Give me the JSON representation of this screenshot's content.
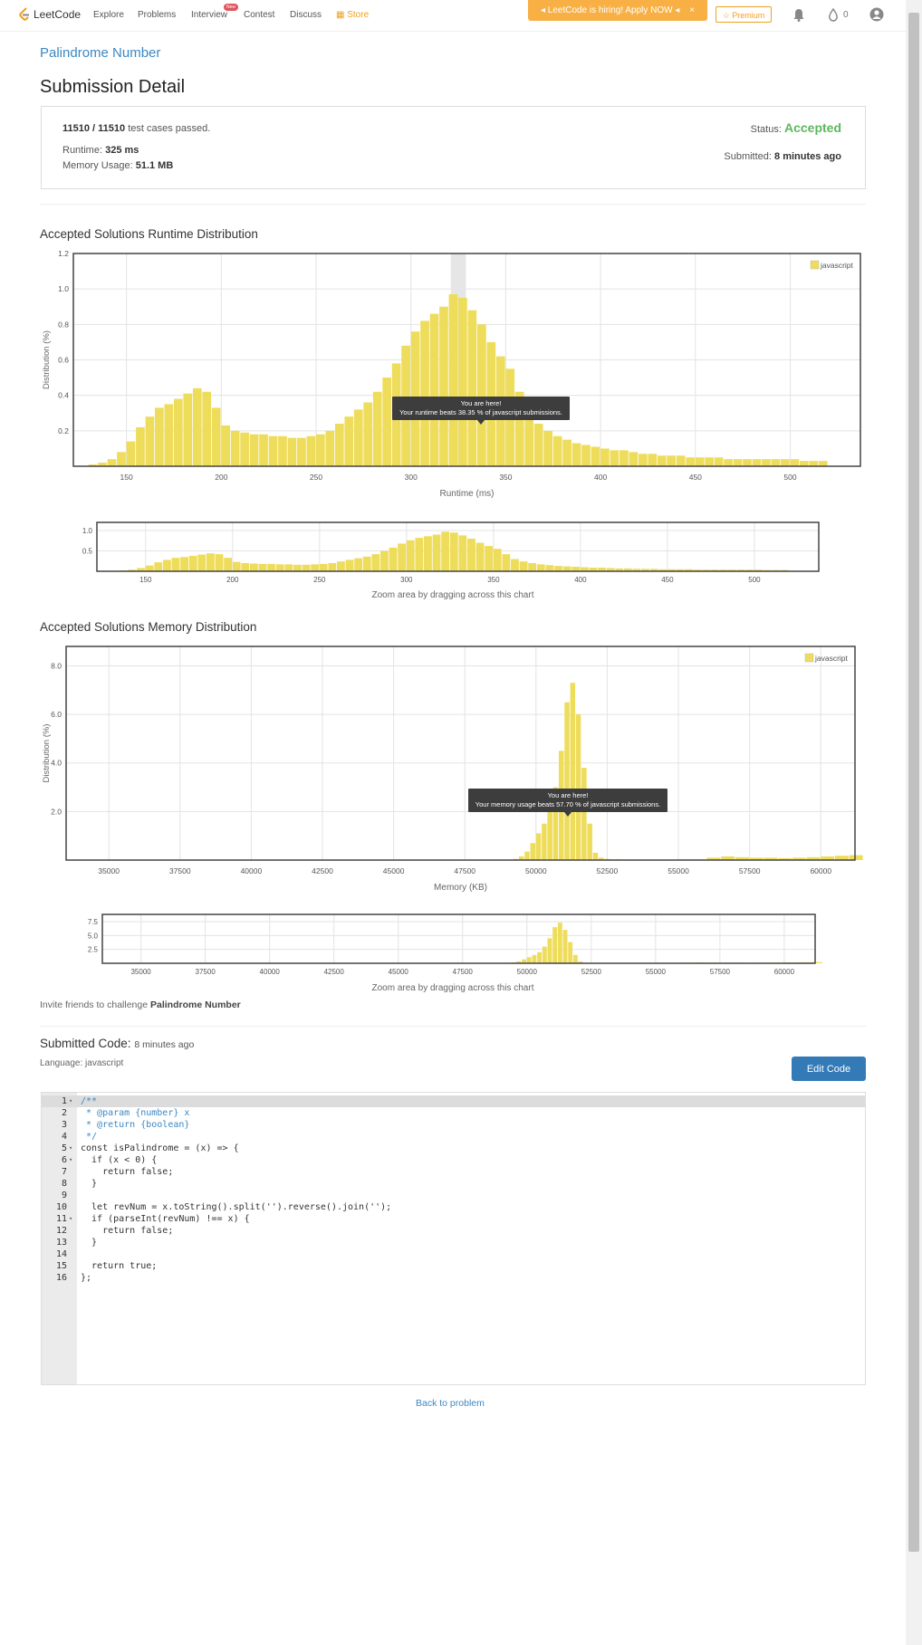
{
  "nav": {
    "brand": "LeetCode",
    "links": [
      "Explore",
      "Problems",
      "Interview",
      "Contest",
      "Discuss",
      "Store"
    ],
    "new_badge": "New",
    "hiring": "LeetCode is hiring! Apply NOW",
    "premium": "Premium",
    "points": "0"
  },
  "problem_title": "Palindrome Number",
  "page_title": "Submission Detail",
  "details": {
    "passed": "11510 / 11510",
    "passed_suffix": "test cases passed.",
    "runtime_label": "Runtime:",
    "runtime": "325 ms",
    "memory_label": "Memory Usage:",
    "memory": "51.1 MB",
    "status_label": "Status:",
    "status": "Accepted",
    "submitted_label": "Submitted:",
    "submitted": "8 minutes ago"
  },
  "runtime_section_title": "Accepted Solutions Runtime Distribution",
  "memory_section_title": "Accepted Solutions Memory Distribution",
  "zoom_note": "Zoom area by dragging across this chart",
  "invite_prefix": "Invite friends to challenge",
  "invite_problem": "Palindrome Number",
  "code_section": {
    "title": "Submitted Code:",
    "time": "8 minutes ago",
    "language": "Language: javascript",
    "edit_button": "Edit Code",
    "lines": [
      "/**",
      " * @param {number} x",
      " * @return {boolean}",
      " */",
      "const isPalindrome = (x) => {",
      "  if (x < 0) {",
      "    return false;",
      "  }",
      "",
      "  let revNum = x.toString().split('').reverse().join('');",
      "  if (parseInt(revNum) !== x) {",
      "    return false;",
      "  }",
      "",
      "  return true;",
      "};"
    ],
    "fold_lines": [
      1,
      5,
      6,
      11
    ]
  },
  "back_link": "Back to problem",
  "colors": {
    "bar": "#eedc5b",
    "accepted": "#5cb85c",
    "link": "#3b88c3"
  },
  "chart_data": [
    {
      "type": "bar",
      "title": "Accepted Solutions Runtime Distribution",
      "xlabel": "Runtime (ms)",
      "ylabel": "Distribution (%)",
      "legend": "javascript",
      "legend_position": "top-right",
      "xlim": [
        122,
        537
      ],
      "ylim": [
        0,
        1.2
      ],
      "xticks": [
        150,
        200,
        250,
        300,
        350,
        400,
        450,
        500
      ],
      "yticks": [
        0.2,
        0.4,
        0.6,
        0.8,
        1.0,
        1.2
      ],
      "grid": true,
      "highlight_x": 325,
      "tooltip": [
        "You are here!",
        "Your runtime beats 38.35 % of javascript submissions."
      ],
      "series": [
        {
          "name": "javascript",
          "x": [
            125,
            130,
            135,
            140,
            145,
            150,
            155,
            160,
            165,
            170,
            175,
            180,
            185,
            190,
            195,
            200,
            205,
            210,
            215,
            220,
            225,
            230,
            235,
            240,
            245,
            250,
            255,
            260,
            265,
            270,
            275,
            280,
            285,
            290,
            295,
            300,
            305,
            310,
            315,
            320,
            325,
            330,
            335,
            340,
            345,
            350,
            355,
            360,
            365,
            370,
            375,
            380,
            385,
            390,
            395,
            400,
            405,
            410,
            415,
            420,
            425,
            430,
            435,
            440,
            445,
            450,
            455,
            460,
            465,
            470,
            475,
            480,
            485,
            490,
            495,
            500,
            505,
            510,
            515
          ],
          "values": [
            0.0,
            0.01,
            0.02,
            0.04,
            0.08,
            0.14,
            0.22,
            0.28,
            0.33,
            0.35,
            0.38,
            0.41,
            0.44,
            0.42,
            0.33,
            0.23,
            0.2,
            0.19,
            0.18,
            0.18,
            0.17,
            0.17,
            0.16,
            0.16,
            0.17,
            0.18,
            0.2,
            0.24,
            0.28,
            0.32,
            0.36,
            0.42,
            0.5,
            0.58,
            0.68,
            0.76,
            0.82,
            0.86,
            0.9,
            0.97,
            0.95,
            0.88,
            0.8,
            0.7,
            0.62,
            0.55,
            0.42,
            0.3,
            0.24,
            0.2,
            0.17,
            0.15,
            0.13,
            0.12,
            0.11,
            0.1,
            0.09,
            0.09,
            0.08,
            0.07,
            0.07,
            0.06,
            0.06,
            0.06,
            0.05,
            0.05,
            0.05,
            0.05,
            0.04,
            0.04,
            0.04,
            0.04,
            0.04,
            0.04,
            0.04,
            0.04,
            0.03,
            0.03,
            0.03
          ]
        }
      ]
    },
    {
      "type": "bar",
      "title": "",
      "xlabel": "",
      "ylabel": "",
      "xlim": [
        122,
        537
      ],
      "ylim": [
        0,
        1.2
      ],
      "xticks": [
        150,
        200,
        250,
        300,
        350,
        400,
        450,
        500
      ],
      "yticks": [
        0.5,
        1.0
      ],
      "grid": true,
      "series": [
        {
          "name": "javascript",
          "x": [
            125,
            130,
            135,
            140,
            145,
            150,
            155,
            160,
            165,
            170,
            175,
            180,
            185,
            190,
            195,
            200,
            205,
            210,
            215,
            220,
            225,
            230,
            235,
            240,
            245,
            250,
            255,
            260,
            265,
            270,
            275,
            280,
            285,
            290,
            295,
            300,
            305,
            310,
            315,
            320,
            325,
            330,
            335,
            340,
            345,
            350,
            355,
            360,
            365,
            370,
            375,
            380,
            385,
            390,
            395,
            400,
            405,
            410,
            415,
            420,
            425,
            430,
            435,
            440,
            445,
            450,
            455,
            460,
            465,
            470,
            475,
            480,
            485,
            490,
            495,
            500,
            505,
            510,
            515
          ],
          "values": [
            0.0,
            0.01,
            0.02,
            0.04,
            0.08,
            0.14,
            0.22,
            0.28,
            0.33,
            0.35,
            0.38,
            0.41,
            0.44,
            0.42,
            0.33,
            0.23,
            0.2,
            0.19,
            0.18,
            0.18,
            0.17,
            0.17,
            0.16,
            0.16,
            0.17,
            0.18,
            0.2,
            0.24,
            0.28,
            0.32,
            0.36,
            0.42,
            0.5,
            0.58,
            0.68,
            0.76,
            0.82,
            0.86,
            0.9,
            0.97,
            0.95,
            0.88,
            0.8,
            0.7,
            0.62,
            0.55,
            0.42,
            0.3,
            0.24,
            0.2,
            0.17,
            0.15,
            0.13,
            0.12,
            0.11,
            0.1,
            0.09,
            0.09,
            0.08,
            0.07,
            0.07,
            0.06,
            0.06,
            0.06,
            0.05,
            0.05,
            0.05,
            0.05,
            0.04,
            0.04,
            0.04,
            0.04,
            0.04,
            0.04,
            0.04,
            0.04,
            0.03,
            0.03,
            0.03
          ]
        }
      ]
    },
    {
      "type": "bar",
      "title": "Accepted Solutions Memory Distribution",
      "xlabel": "Memory (KB)",
      "ylabel": "Distribution (%)",
      "legend": "javascript",
      "legend_position": "top-right",
      "xlim": [
        33500,
        61200
      ],
      "ylim": [
        0,
        8.8
      ],
      "xticks": [
        35000,
        37500,
        40000,
        42500,
        45000,
        47500,
        50000,
        52500,
        55000,
        57500,
        60000
      ],
      "yticks": [
        2,
        4,
        6,
        8
      ],
      "grid": true,
      "tooltip": [
        "You are here!",
        "Your memory usage beats 57.70 % of javascript submissions."
      ],
      "series": [
        {
          "name": "javascript",
          "x": [
            49200,
            49400,
            49600,
            49800,
            50000,
            50200,
            50400,
            50600,
            50800,
            51000,
            51200,
            51400,
            51600,
            51800,
            52000,
            52200,
            52400,
            52600,
            53000,
            54000,
            55000,
            56000,
            56500,
            57000,
            57500,
            58000,
            58500,
            59000,
            59500,
            60000,
            60500,
            61000
          ],
          "values": [
            0.05,
            0.15,
            0.35,
            0.7,
            1.1,
            1.5,
            2.0,
            3.0,
            4.5,
            6.5,
            7.3,
            6.0,
            3.8,
            1.5,
            0.3,
            0.1,
            0.05,
            0.03,
            0.02,
            0.02,
            0.03,
            0.1,
            0.15,
            0.12,
            0.1,
            0.1,
            0.08,
            0.1,
            0.12,
            0.15,
            0.18,
            0.2
          ]
        }
      ]
    },
    {
      "type": "bar",
      "title": "",
      "xlabel": "",
      "ylabel": "",
      "xlim": [
        33500,
        61200
      ],
      "ylim": [
        0,
        8.8
      ],
      "xticks": [
        35000,
        37500,
        40000,
        42500,
        45000,
        47500,
        50000,
        52500,
        55000,
        57500,
        60000
      ],
      "yticks": [
        2.5,
        5.0,
        7.5
      ],
      "grid": true,
      "series": [
        {
          "name": "javascript",
          "x": [
            49200,
            49400,
            49600,
            49800,
            50000,
            50200,
            50400,
            50600,
            50800,
            51000,
            51200,
            51400,
            51600,
            51800,
            52000,
            52200,
            52400,
            52600,
            53000,
            54000,
            55000,
            56000,
            56500,
            57000,
            57500,
            58000,
            58500,
            59000,
            59500,
            60000,
            60500,
            61000
          ],
          "values": [
            0.05,
            0.15,
            0.35,
            0.7,
            1.1,
            1.5,
            2.0,
            3.0,
            4.5,
            6.5,
            7.3,
            6.0,
            3.8,
            1.5,
            0.3,
            0.1,
            0.05,
            0.03,
            0.02,
            0.02,
            0.03,
            0.1,
            0.15,
            0.12,
            0.1,
            0.1,
            0.08,
            0.1,
            0.12,
            0.15,
            0.18,
            0.2
          ]
        }
      ]
    }
  ]
}
